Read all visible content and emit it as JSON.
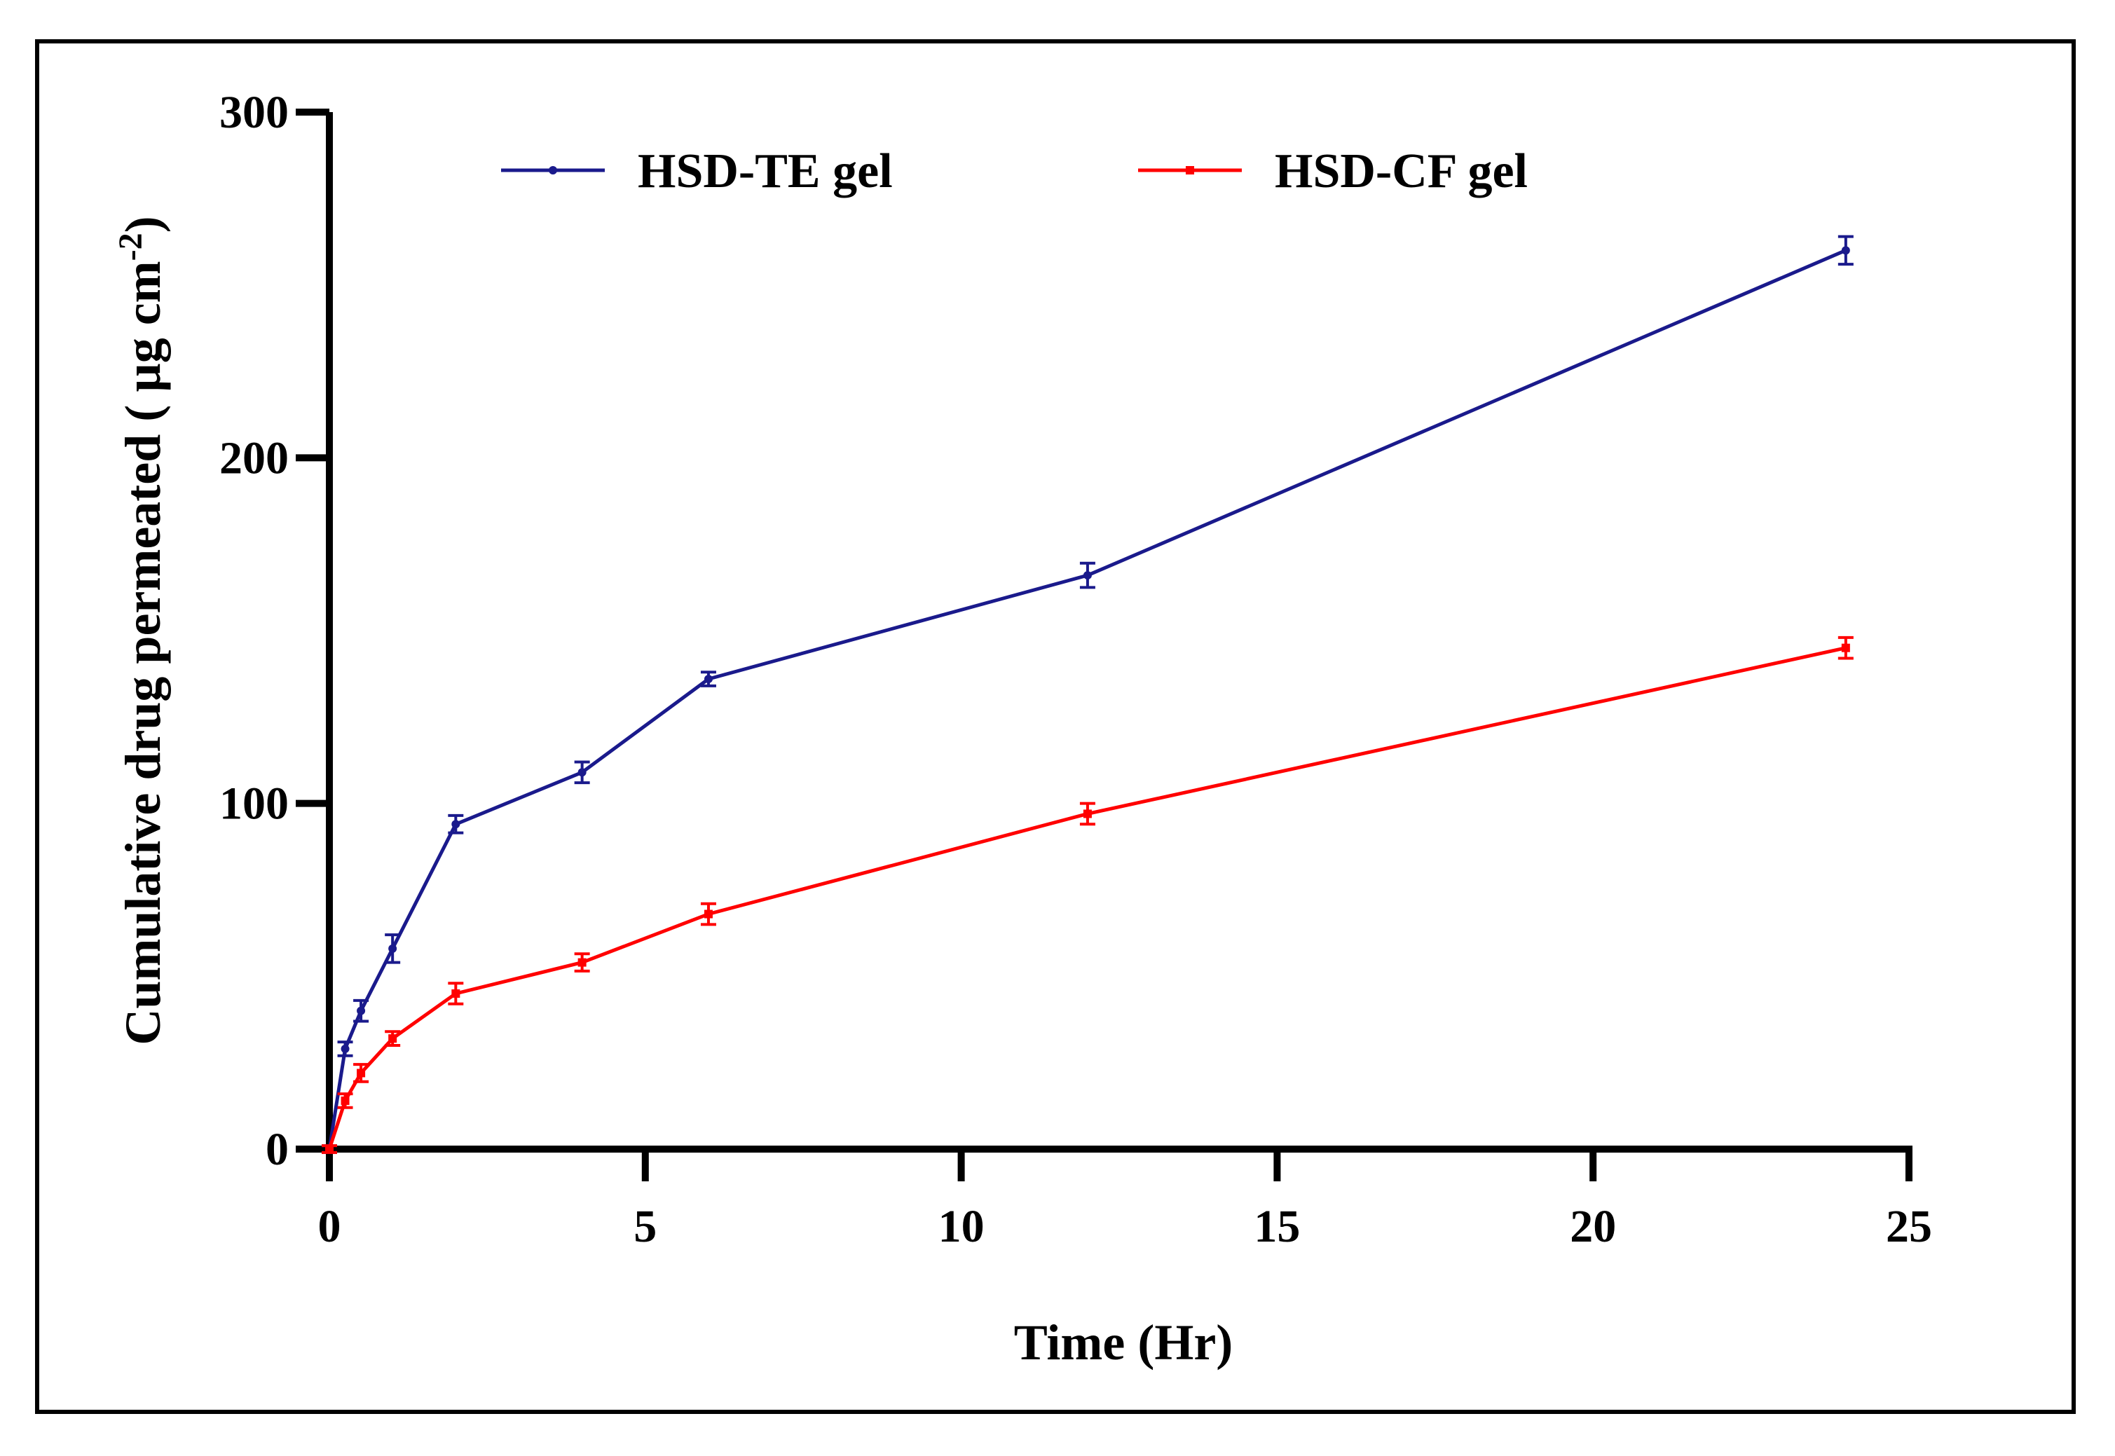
{
  "chart_data": {
    "type": "line",
    "title": "",
    "xlabel": "Time (Hr)",
    "ylabel_main": "Cumulative drug permeated ( µg cm",
    "ylabel_sup": "-2",
    "ylabel_close": ")",
    "xlim": [
      0,
      25
    ],
    "ylim": [
      0,
      300
    ],
    "xticks": [
      0,
      5,
      10,
      15,
      20,
      25
    ],
    "yticks": [
      0,
      100,
      200,
      300
    ],
    "legend_position": "top",
    "grid": false,
    "series": [
      {
        "name": "HSD-TE gel",
        "color": "#1a1a8c",
        "marker": "circle",
        "x": [
          0,
          0.25,
          0.5,
          1,
          2,
          4,
          6,
          12,
          24
        ],
        "y": [
          0,
          29,
          40,
          58,
          94,
          109,
          136,
          166,
          260
        ],
        "err": [
          1,
          2,
          3,
          4,
          2.5,
          3,
          2,
          3.5,
          4
        ]
      },
      {
        "name": "HSD-CF gel",
        "color": "#ff0000",
        "marker": "square",
        "x": [
          0,
          0.25,
          0.5,
          1,
          2,
          4,
          6,
          12,
          24
        ],
        "y": [
          0,
          14,
          22,
          32,
          45,
          54,
          68,
          97,
          145
        ],
        "err": [
          1,
          2,
          2.5,
          2,
          3,
          2.5,
          3,
          3,
          3
        ]
      }
    ]
  }
}
